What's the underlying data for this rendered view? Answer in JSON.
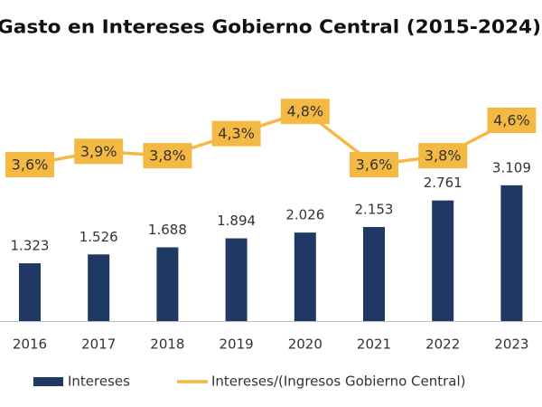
{
  "chart_data": {
    "type": "bar-line",
    "title": "Gasto en Intereses Gobierno Central (2015-2024)",
    "categories": [
      "2016",
      "2017",
      "2018",
      "2019",
      "2020",
      "2021",
      "2022",
      "2023"
    ],
    "series": [
      {
        "name": "Intereses",
        "type": "bar",
        "color": "#1f3864",
        "values": [
          1323,
          1526,
          1688,
          1894,
          2026,
          2153,
          2761,
          3109
        ],
        "value_labels": [
          "1.323",
          "1.526",
          "1.688",
          "1.894",
          "2.026",
          "2.153",
          "2.761",
          "3.109"
        ]
      },
      {
        "name": "Intereses/(Ingresos Gobierno Central)",
        "type": "line",
        "axis": "y2",
        "color": "#f4b942",
        "values": [
          3.6,
          3.9,
          3.8,
          4.3,
          4.8,
          3.6,
          3.8,
          4.6
        ],
        "value_labels": [
          "3,6%",
          "3,9%",
          "3,8%",
          "4,3%",
          "4,8%",
          "3,6%",
          "3,8%",
          "4,6%"
        ]
      }
    ]
  }
}
